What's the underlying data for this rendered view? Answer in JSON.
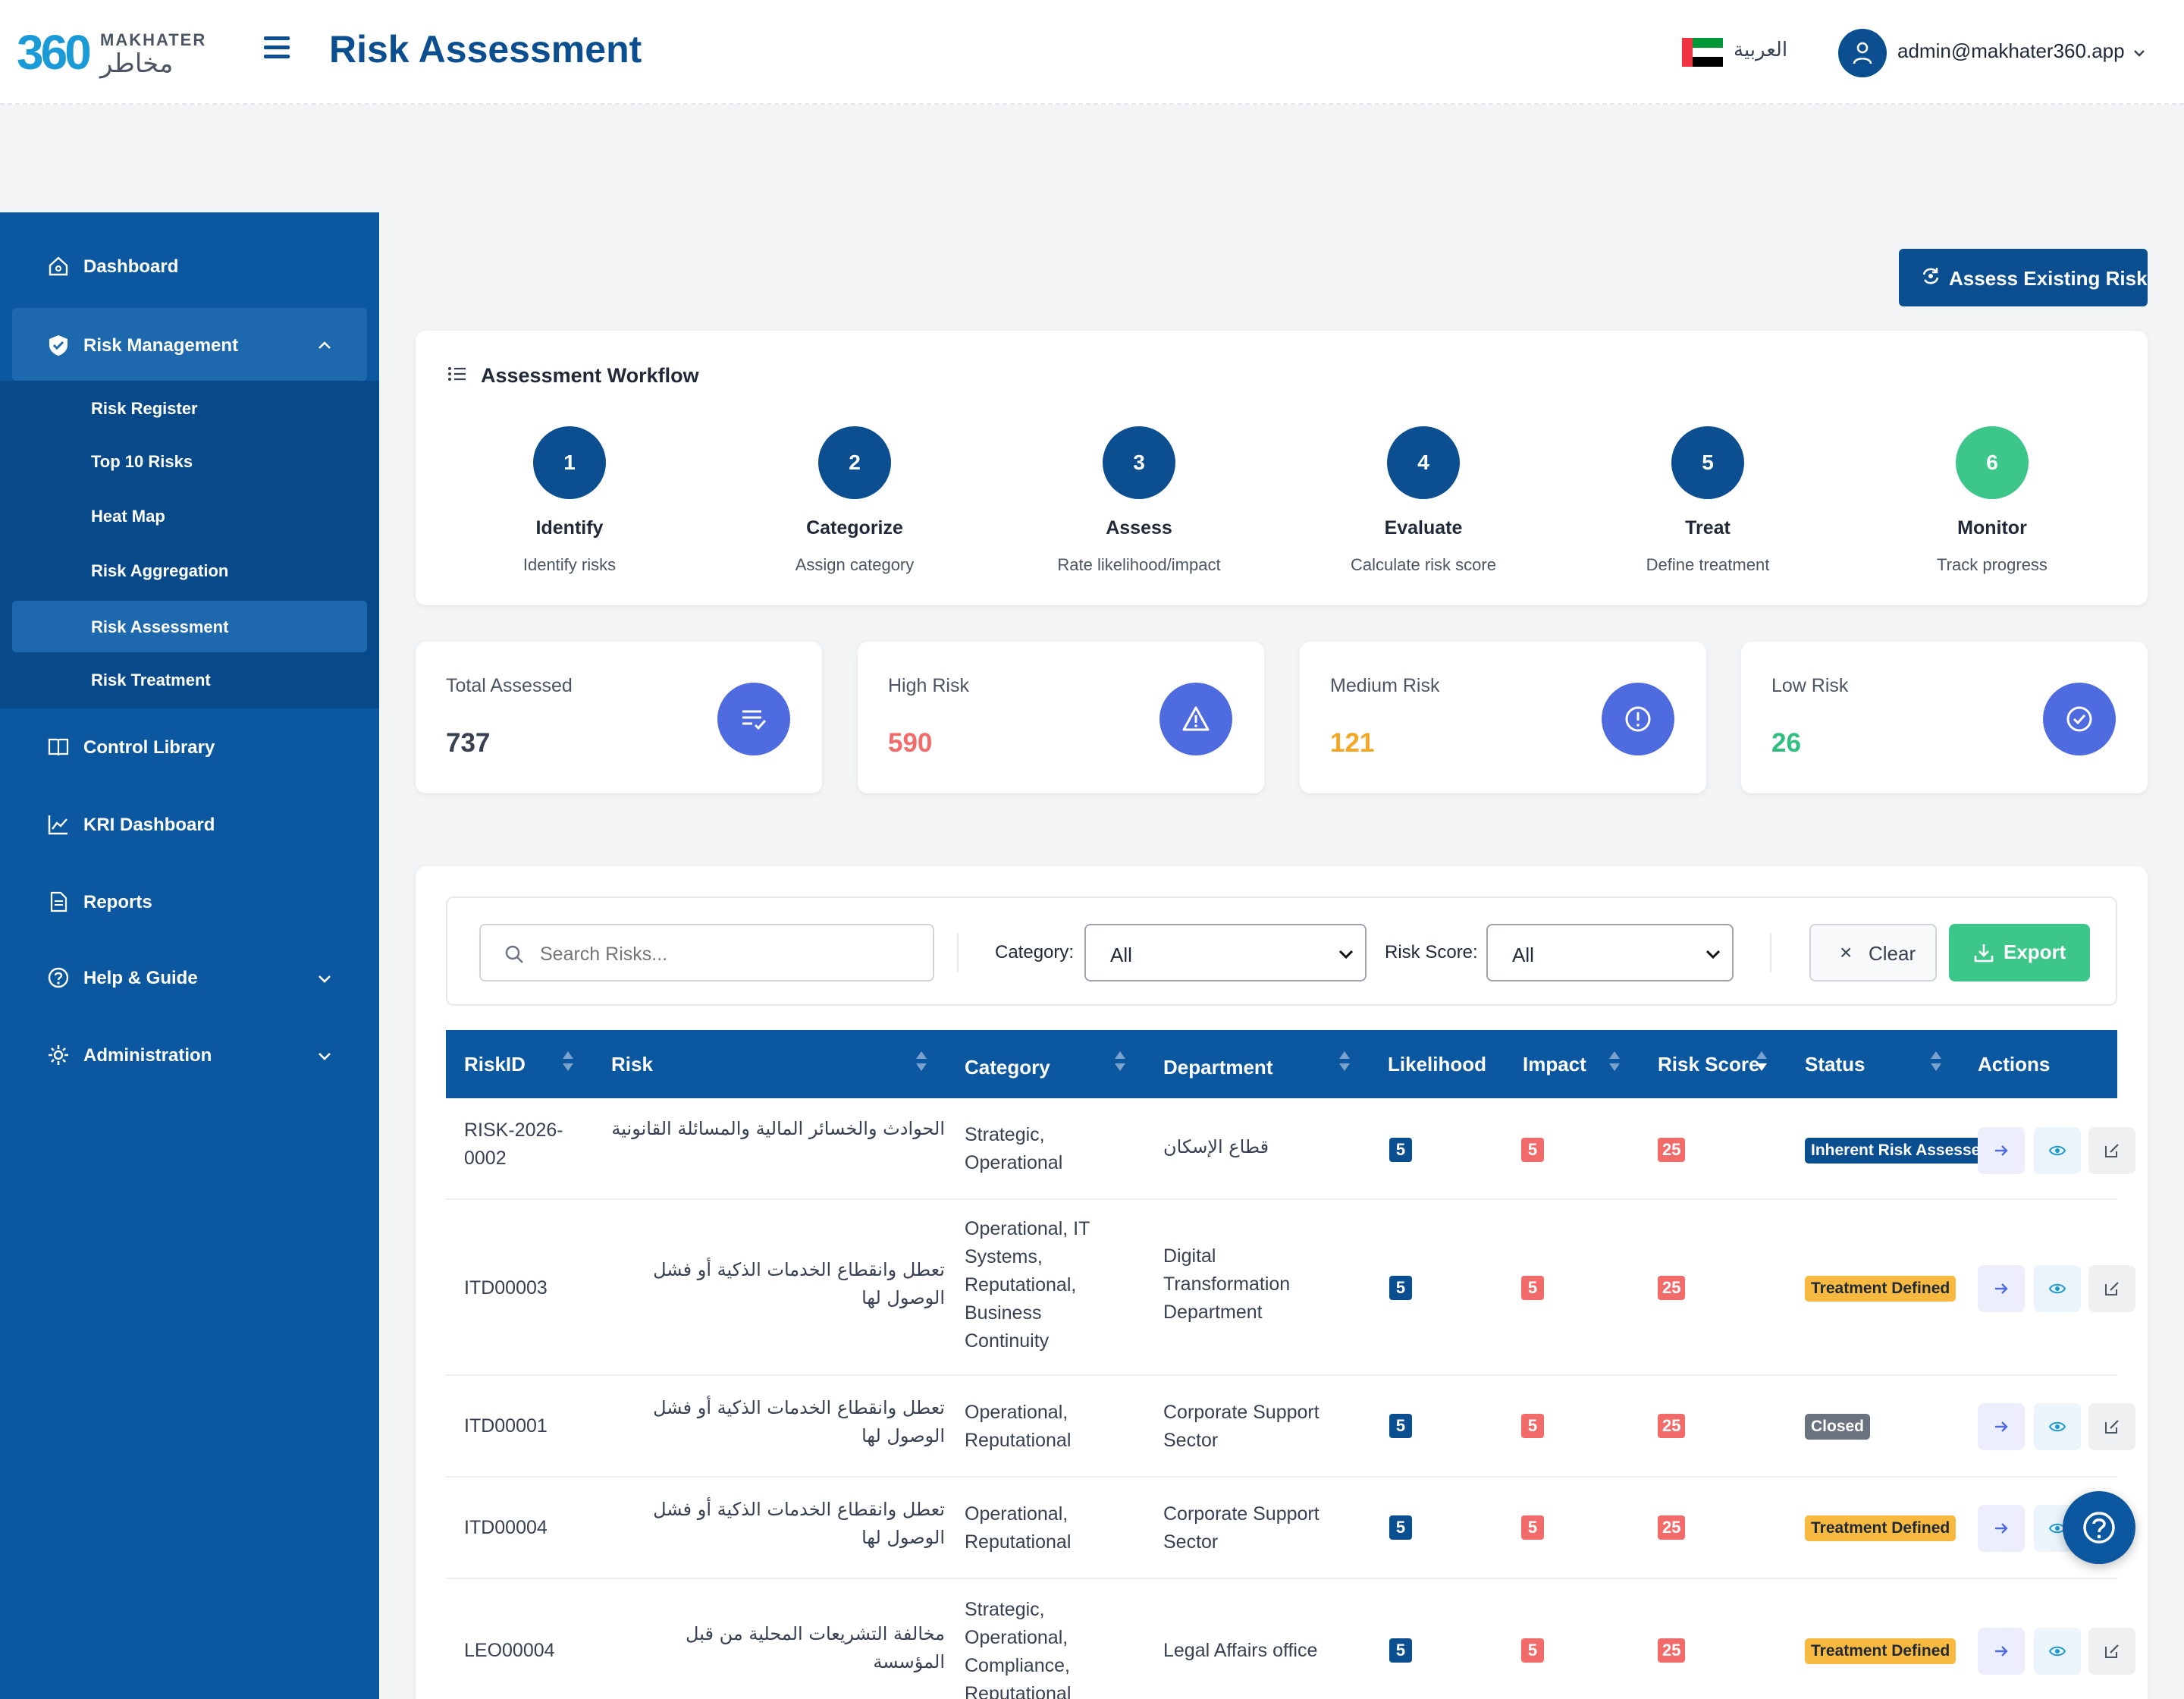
{
  "header": {
    "logo_number": "360",
    "logo_en": "MAKHATER",
    "logo_ar": "مخاطر",
    "title": "Risk Assessment",
    "language": "العربية",
    "user_email": "admin@makhater360.app"
  },
  "sidebar": {
    "items": [
      {
        "label": "Dashboard",
        "icon": "home-icon"
      },
      {
        "label": "Risk Management",
        "icon": "shield-icon"
      },
      {
        "label": "Control Library",
        "icon": "book-icon"
      },
      {
        "label": "KRI Dashboard",
        "icon": "chart-line-icon"
      },
      {
        "label": "Reports",
        "icon": "document-icon"
      },
      {
        "label": "Help & Guide",
        "icon": "help-circle-icon"
      },
      {
        "label": "Administration",
        "icon": "gear-icon"
      }
    ],
    "submenu": [
      {
        "label": "Risk Register"
      },
      {
        "label": "Top 10 Risks"
      },
      {
        "label": "Heat Map"
      },
      {
        "label": "Risk Aggregation"
      },
      {
        "label": "Risk Assessment"
      },
      {
        "label": "Risk Treatment"
      }
    ]
  },
  "main": {
    "assess_button": "Assess Existing Risk",
    "workflow": {
      "title": "Assessment Workflow",
      "steps": [
        {
          "num": "1",
          "name": "Identify",
          "desc": "Identify risks"
        },
        {
          "num": "2",
          "name": "Categorize",
          "desc": "Assign category"
        },
        {
          "num": "3",
          "name": "Assess",
          "desc": "Rate likelihood/impact"
        },
        {
          "num": "4",
          "name": "Evaluate",
          "desc": "Calculate risk score"
        },
        {
          "num": "5",
          "name": "Treat",
          "desc": "Define treatment"
        },
        {
          "num": "6",
          "name": "Monitor",
          "desc": "Track progress"
        }
      ]
    },
    "stats": [
      {
        "label": "Total Assessed",
        "value": "737",
        "color": "#374151"
      },
      {
        "label": "High Risk",
        "value": "590",
        "color": "#f26b6b"
      },
      {
        "label": "Medium Risk",
        "value": "121",
        "color": "#f5a623"
      },
      {
        "label": "Low Risk",
        "value": "26",
        "color": "#2fbf7f"
      }
    ],
    "filters": {
      "search_placeholder": "Search Risks...",
      "category_label": "Category:",
      "category_value": "All",
      "score_label": "Risk Score:",
      "score_value": "All",
      "clear": "Clear",
      "export": "Export"
    },
    "table": {
      "headers": [
        "RiskID",
        "Risk",
        "Category",
        "Department",
        "Likelihood",
        "Impact",
        "Risk Score",
        "Status",
        "Actions"
      ],
      "rows": [
        {
          "id": "RISK-2026-\n0002",
          "risk": "الحوادث والخسائر المالية والمسائلة القانونية",
          "category": "Strategic,\nOperational",
          "department": "قطاع الإسكان",
          "likelihood": "5",
          "impact": "5",
          "score": "25",
          "status": "Inherent Risk Assessed"
        },
        {
          "id": "ITD00003",
          "risk": "تعطل وانقطاع الخدمات الذكية أو فشل الوصول لها",
          "category": "Operational, IT\nSystems,\nReputational,\nBusiness\nContinuity",
          "department": "Digital\nTransformation\nDepartment",
          "likelihood": "5",
          "impact": "5",
          "score": "25",
          "status": "Treatment Defined"
        },
        {
          "id": "ITD00001",
          "risk": "تعطل وانقطاع الخدمات الذكية أو فشل الوصول لها",
          "category": "Operational,\nReputational",
          "department": "Corporate Support\nSector",
          "likelihood": "5",
          "impact": "5",
          "score": "25",
          "status": "Closed"
        },
        {
          "id": "ITD00004",
          "risk": "تعطل وانقطاع الخدمات الذكية أو فشل الوصول لها",
          "category": "Operational,\nReputational",
          "department": "Corporate Support\nSector",
          "likelihood": "5",
          "impact": "5",
          "score": "25",
          "status": "Treatment Defined"
        },
        {
          "id": "LEO00004",
          "risk": "مخالفة التشريعات المحلية من قبل المؤسسة",
          "category": "Strategic,\nOperational,\nCompliance,\nReputational",
          "department": "Legal Affairs office",
          "likelihood": "5",
          "impact": "5",
          "score": "25",
          "status": "Treatment Defined"
        }
      ]
    }
  }
}
